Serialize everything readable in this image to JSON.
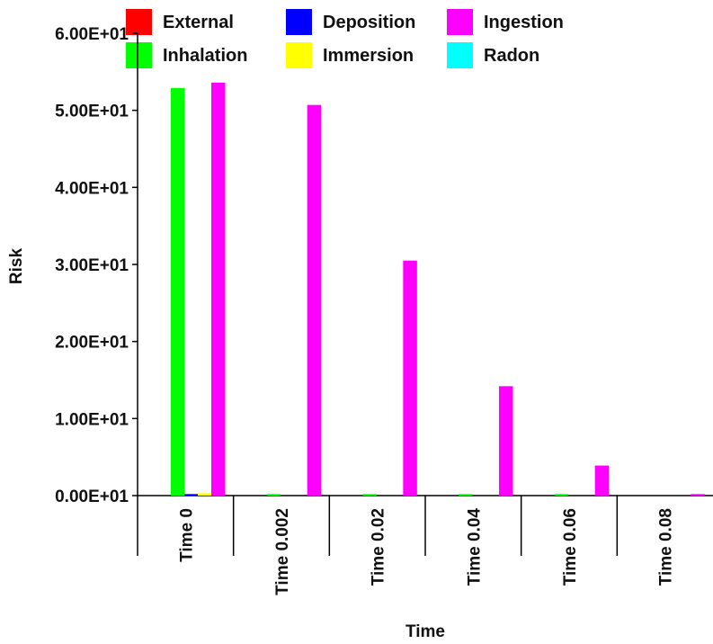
{
  "chart_data": {
    "type": "bar",
    "title": "",
    "xlabel": "Time",
    "ylabel": "Risk",
    "categories": [
      "Time 0",
      "Time 0.002",
      "Time 0.02",
      "Time 0.04",
      "Time 0.06",
      "Time 0.08"
    ],
    "ylim": [
      0,
      60
    ],
    "yticks": [
      0,
      10,
      20,
      30,
      40,
      50,
      60
    ],
    "ytick_labels": [
      "0.00E+01",
      "1.00E+01",
      "2.00E+01",
      "3.00E+01",
      "4.00E+01",
      "5.00E+01",
      "6.00E+01"
    ],
    "grid": false,
    "legend_position": "top",
    "series": [
      {
        "name": "External",
        "color": "#ff0000",
        "values": [
          0,
          0,
          0,
          0,
          0,
          0
        ]
      },
      {
        "name": "Inhalation",
        "color": "#00ff00",
        "values": [
          52.9,
          0.2,
          0.2,
          0.2,
          0.2,
          0
        ]
      },
      {
        "name": "Deposition",
        "color": "#0000ff",
        "values": [
          0.2,
          0,
          0,
          0,
          0,
          0
        ]
      },
      {
        "name": "Immersion",
        "color": "#ffff00",
        "values": [
          0.3,
          0,
          0,
          0,
          0,
          0
        ]
      },
      {
        "name": "Ingestion",
        "color": "#ff00ff",
        "values": [
          53.6,
          50.7,
          30.5,
          14.2,
          3.9,
          0.2
        ]
      },
      {
        "name": "Radon",
        "color": "#00ffff",
        "values": [
          0,
          0,
          0,
          0,
          0,
          0
        ]
      }
    ]
  }
}
